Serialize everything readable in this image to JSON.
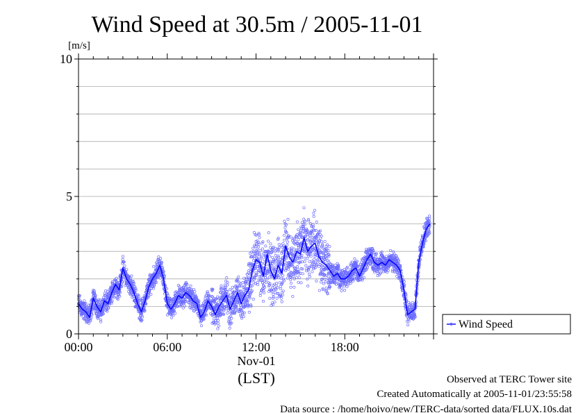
{
  "chart_data": {
    "type": "scatter",
    "title": "Wind Speed at 30.5m / 2005-11-01",
    "y_unit_label": "[m/s]",
    "ylim": [
      0,
      10
    ],
    "y_ticks": [
      {
        "value": 0,
        "label": "0"
      },
      {
        "value": 5,
        "label": "5"
      },
      {
        "value": 10,
        "label": "10"
      }
    ],
    "y_minor_grid": [
      1,
      2,
      3,
      4,
      6,
      7,
      8,
      9
    ],
    "xlim": [
      "00:00",
      "24:00"
    ],
    "x_ticks": [
      {
        "value": "00:00",
        "label": "00:00"
      },
      {
        "value": "06:00",
        "label": "06:00"
      },
      {
        "value": "12:00",
        "label": "12:00"
      },
      {
        "value": "18:00",
        "label": "18:00"
      }
    ],
    "x_date_label": "Nov-01",
    "x_axis_label": "(LST)",
    "grid": "horizontal",
    "legend_position": "right",
    "series": [
      {
        "name": "Wind Speed",
        "color": "#0000ff",
        "point_color": "#6b6bff",
        "x": [
          "00:00",
          "00:15",
          "00:30",
          "00:45",
          "01:00",
          "01:15",
          "01:30",
          "01:45",
          "02:00",
          "02:15",
          "02:30",
          "02:45",
          "03:00",
          "03:15",
          "03:30",
          "03:45",
          "04:00",
          "04:15",
          "04:30",
          "04:45",
          "05:00",
          "05:15",
          "05:30",
          "05:45",
          "06:00",
          "06:15",
          "06:30",
          "06:45",
          "07:00",
          "07:15",
          "07:30",
          "07:45",
          "08:00",
          "08:15",
          "08:30",
          "08:45",
          "09:00",
          "09:15",
          "09:30",
          "09:45",
          "10:00",
          "10:15",
          "10:30",
          "10:45",
          "11:00",
          "11:15",
          "11:30",
          "11:45",
          "12:00",
          "12:15",
          "12:30",
          "12:45",
          "13:00",
          "13:15",
          "13:30",
          "13:45",
          "14:00",
          "14:15",
          "14:30",
          "14:45",
          "15:00",
          "15:15",
          "15:30",
          "15:45",
          "16:00",
          "16:15",
          "16:30",
          "16:45",
          "17:00",
          "17:15",
          "17:30",
          "17:45",
          "18:00",
          "18:15",
          "18:30",
          "18:45",
          "19:00",
          "19:15",
          "19:30",
          "19:45",
          "20:00",
          "20:15",
          "20:30",
          "20:45",
          "21:00",
          "21:15",
          "21:30",
          "21:45",
          "22:00",
          "22:15",
          "22:30",
          "22:45",
          "23:00",
          "23:15",
          "23:30",
          "23:45"
        ],
        "values": [
          1.1,
          0.9,
          0.8,
          0.6,
          1.3,
          1.0,
          0.8,
          1.2,
          1.1,
          1.5,
          1.8,
          1.6,
          2.4,
          2.0,
          1.8,
          1.5,
          1.1,
          0.8,
          1.2,
          1.7,
          2.0,
          2.2,
          2.5,
          2.0,
          1.1,
          0.9,
          1.1,
          1.4,
          1.3,
          1.5,
          1.4,
          1.2,
          1.1,
          0.6,
          0.8,
          1.2,
          1.0,
          0.7,
          1.0,
          1.2,
          1.4,
          0.9,
          1.2,
          1.5,
          1.1,
          1.4,
          1.6,
          2.3,
          2.7,
          2.6,
          2.1,
          2.9,
          2.3,
          2.0,
          2.5,
          2.2,
          3.2,
          2.8,
          2.6,
          3.0,
          2.9,
          3.5,
          3.0,
          3.2,
          3.3,
          2.8,
          2.6,
          2.5,
          2.3,
          2.1,
          2.2,
          2.0,
          2.0,
          2.1,
          2.3,
          2.4,
          2.1,
          2.4,
          2.7,
          2.9,
          2.6,
          2.5,
          2.6,
          2.5,
          2.7,
          2.6,
          2.5,
          2.3,
          1.6,
          0.7,
          0.8,
          0.9,
          2.6,
          3.3,
          3.8,
          4.0
        ]
      }
    ],
    "scatter_spread": "roughly ±0.5 m/s around the line overnight and in the evening, up to about ±1.5 m/s between 12:00 and 17:00 (individual points reaching 5.4 m/s)"
  },
  "footer": {
    "line1": "Observed at TERC Tower site",
    "line2": "Created Automatically at 2005-11-01/23:55:58",
    "line3": "Data source : /home/hoivo/new/TERC-data/sorted  data/FLUX.10s.dat"
  }
}
